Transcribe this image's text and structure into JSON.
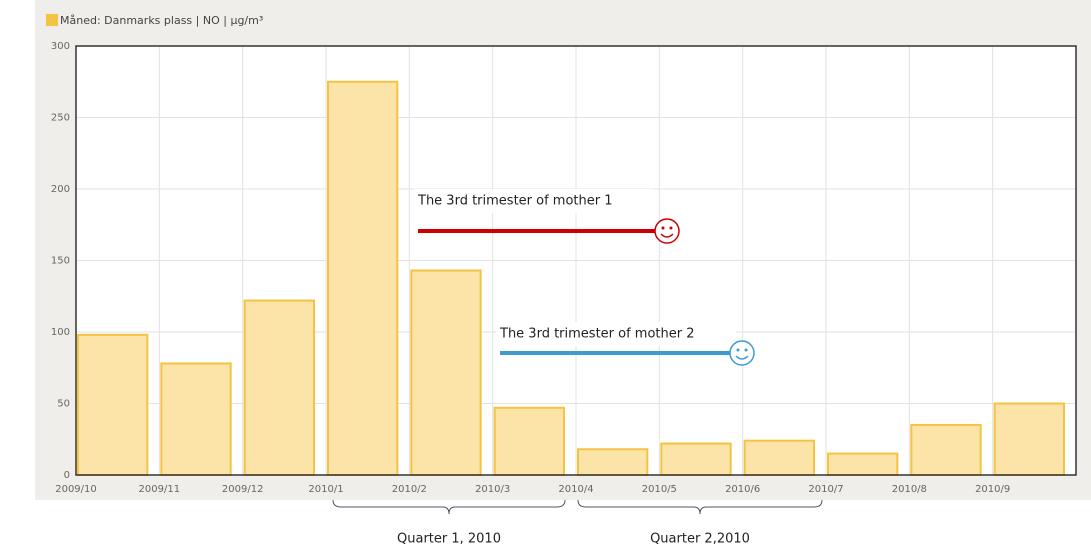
{
  "chart_data": {
    "type": "bar",
    "legend": "Måned: Danmarks plass | NO | µg/m³",
    "categories": [
      "2009/10",
      "2009/11",
      "2009/12",
      "2010/1",
      "2010/2",
      "2010/3",
      "2010/4",
      "2010/5",
      "2010/6",
      "2010/7",
      "2010/8",
      "2010/9"
    ],
    "values": [
      98,
      78,
      122,
      275,
      143,
      47,
      18,
      22,
      24,
      15,
      35,
      50
    ],
    "color": "#fce4a8",
    "edge_color": "#f5c342",
    "ylim": [
      0,
      300
    ],
    "yticks": [
      0,
      50,
      100,
      150,
      200,
      250,
      300
    ],
    "grid": true,
    "annotations": [
      {
        "text": "The 3rd trimester of mother 1",
        "color": "#cc0000"
      },
      {
        "text": "The 3rd trimester of mother 2",
        "color": "#3d9bd0"
      }
    ],
    "brackets": [
      "Quarter 1, 2010",
      "Quarter 2,2010"
    ]
  }
}
